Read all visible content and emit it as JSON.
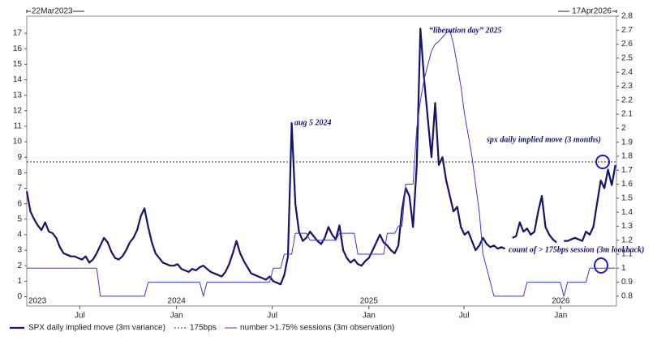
{
  "chart_data": {
    "type": "line",
    "header_start": "22Mar2023",
    "header_end": "17Apr2026",
    "x": [
      "2023-03-22",
      "2023-03-29",
      "2023-04-05",
      "2023-04-12",
      "2023-04-19",
      "2023-04-26",
      "2023-05-03",
      "2023-05-10",
      "2023-05-17",
      "2023-05-24",
      "2023-05-31",
      "2023-06-07",
      "2023-06-14",
      "2023-06-21",
      "2023-06-28",
      "2023-07-05",
      "2023-07-12",
      "2023-07-19",
      "2023-07-26",
      "2023-08-02",
      "2023-08-09",
      "2023-08-16",
      "2023-08-23",
      "2023-08-30",
      "2023-09-06",
      "2023-09-13",
      "2023-09-20",
      "2023-09-27",
      "2023-10-04",
      "2023-10-11",
      "2023-10-18",
      "2023-10-25",
      "2023-11-01",
      "2023-11-08",
      "2023-11-15",
      "2023-11-22",
      "2023-11-29",
      "2023-12-06",
      "2023-12-13",
      "2023-12-20",
      "2023-12-27",
      "2024-01-03",
      "2024-01-10",
      "2024-01-17",
      "2024-01-24",
      "2024-01-31",
      "2024-02-07",
      "2024-02-14",
      "2024-02-21",
      "2024-02-28",
      "2024-03-06",
      "2024-03-13",
      "2024-03-20",
      "2024-03-27",
      "2024-04-03",
      "2024-04-10",
      "2024-04-17",
      "2024-04-24",
      "2024-05-01",
      "2024-05-08",
      "2024-05-15",
      "2024-05-22",
      "2024-05-29",
      "2024-06-05",
      "2024-06-12",
      "2024-06-19",
      "2024-06-26",
      "2024-07-03",
      "2024-07-10",
      "2024-07-17",
      "2024-07-24",
      "2024-07-31",
      "2024-08-07",
      "2024-08-14",
      "2024-08-21",
      "2024-08-28",
      "2024-09-04",
      "2024-09-11",
      "2024-09-18",
      "2024-09-25",
      "2024-10-02",
      "2024-10-09",
      "2024-10-16",
      "2024-10-23",
      "2024-10-30",
      "2024-11-06",
      "2024-11-13",
      "2024-11-20",
      "2024-11-27",
      "2024-12-04",
      "2024-12-11",
      "2024-12-18",
      "2024-12-25",
      "2025-01-01",
      "2025-01-08",
      "2025-01-15",
      "2025-01-22",
      "2025-01-29",
      "2025-02-05",
      "2025-02-12",
      "2025-02-19",
      "2025-02-26",
      "2025-03-05",
      "2025-03-12",
      "2025-03-19",
      "2025-03-26",
      "2025-04-02",
      "2025-04-09",
      "2025-04-16",
      "2025-04-23",
      "2025-04-30",
      "2025-05-07",
      "2025-05-14",
      "2025-05-21",
      "2025-05-28",
      "2025-06-04",
      "2025-06-11",
      "2025-06-18",
      "2025-06-25",
      "2025-07-02",
      "2025-07-09",
      "2025-07-16",
      "2025-07-23",
      "2025-07-30",
      "2025-08-06",
      "2025-08-13",
      "2025-08-20",
      "2025-08-27",
      "2025-09-03",
      "2025-09-10",
      "2025-09-17",
      "2025-09-24",
      "2025-10-01",
      "2025-10-08",
      "2025-10-15",
      "2025-10-22",
      "2025-10-29",
      "2025-11-05",
      "2025-11-12",
      "2025-11-19",
      "2025-11-26",
      "2025-12-03",
      "2025-12-10",
      "2025-12-17",
      "2025-12-24",
      "2025-12-31",
      "2026-01-07",
      "2026-01-14",
      "2026-01-21",
      "2026-01-28",
      "2026-02-04",
      "2026-02-11",
      "2026-02-18",
      "2026-02-25",
      "2026-03-04",
      "2026-03-11",
      "2026-03-18",
      "2026-03-25",
      "2026-04-01",
      "2026-04-08",
      "2026-04-15"
    ],
    "xlim": [
      "2023-03-22",
      "2026-04-17"
    ],
    "xticks": [
      {
        "value": "2023-07-01",
        "label": "Jul"
      },
      {
        "value": "2024-01-01",
        "label": "Jan"
      },
      {
        "value": "2024-07-01",
        "label": "Jul"
      },
      {
        "value": "2025-01-01",
        "label": "Jan"
      },
      {
        "value": "2025-07-01",
        "label": "Jul"
      },
      {
        "value": "2026-01-01",
        "label": "Jan"
      }
    ],
    "year_labels": [
      {
        "value": "2023-03-22",
        "label": "2023"
      },
      {
        "value": "2024-01-01",
        "label": "2024"
      },
      {
        "value": "2025-01-01",
        "label": "2025"
      },
      {
        "value": "2026-01-01",
        "label": "2026"
      }
    ],
    "ylim": [
      -0.6,
      18.1
    ],
    "yticks": [
      0,
      1,
      2,
      3,
      4,
      5,
      6,
      7,
      8,
      9,
      10,
      11,
      12,
      13,
      14,
      15,
      16,
      17
    ],
    "y2lim": [
      0.73,
      2.8
    ],
    "y2ticks": [
      0.8,
      0.9,
      1,
      1.1,
      1.2,
      1.3,
      1.4,
      1.5,
      1.6,
      1.7,
      1.8,
      1.9,
      2,
      2.1,
      2.2,
      2.3,
      2.4,
      2.5,
      2.6,
      2.7,
      2.8
    ],
    "series": [
      {
        "name": "SPX daily implied move (3m variance)",
        "color": "#14146e",
        "axis": "y",
        "values": [
          6.8,
          5.5,
          5.0,
          4.6,
          4.3,
          4.8,
          4.2,
          4.1,
          3.8,
          3.2,
          2.8,
          2.7,
          2.6,
          2.6,
          2.5,
          2.4,
          2.6,
          2.2,
          2.4,
          2.8,
          3.3,
          3.8,
          3.5,
          2.9,
          2.5,
          2.4,
          2.6,
          3.0,
          3.5,
          3.8,
          4.3,
          5.2,
          5.7,
          4.5,
          3.5,
          2.8,
          2.5,
          2.2,
          2.1,
          2.0,
          2.0,
          2.1,
          1.8,
          1.7,
          1.6,
          1.8,
          1.7,
          1.9,
          2.0,
          1.8,
          1.6,
          1.5,
          1.4,
          1.3,
          1.6,
          2.1,
          2.8,
          3.6,
          2.8,
          2.3,
          1.9,
          1.5,
          1.4,
          1.3,
          1.2,
          1.1,
          1.3,
          1.0,
          0.9,
          0.8,
          1.4,
          2.6,
          11.2,
          6.0,
          4.2,
          3.6,
          3.8,
          4.2,
          3.9,
          3.6,
          3.4,
          3.8,
          4.5,
          4.0,
          3.7,
          4.6,
          3.0,
          2.5,
          2.2,
          2.4,
          2.1,
          2.0,
          2.3,
          2.5,
          3.0,
          3.5,
          4.0,
          3.5,
          3.3,
          3.0,
          2.8,
          3.3,
          5.6,
          7.0,
          6.5,
          4.5,
          8.5,
          17.3,
          14.0,
          11.5,
          9.0,
          12.5,
          8.5,
          9.0,
          7.5,
          6.5,
          5.5,
          5.8,
          4.5,
          4.0,
          4.2,
          3.6,
          3.0,
          3.3,
          3.8,
          3.4,
          3.2,
          3.3,
          3.1,
          3.2,
          3.1,
          null,
          3.8,
          3.9,
          4.8,
          4.2,
          4.4,
          4.0,
          4.2,
          5.5,
          6.5,
          4.5,
          4.0,
          3.7,
          3.5,
          null,
          3.6,
          3.6,
          3.7,
          3.8,
          3.7,
          3.6,
          4.2,
          4.0,
          4.5,
          6.0,
          7.5,
          7.0,
          8.2,
          7.2,
          8.5
        ]
      },
      {
        "name": "number >1.75% sessions (3m observation)",
        "color": "#3a3ad0",
        "axis": "y2",
        "values": [
          1.0,
          1.0,
          1.0,
          1.0,
          1.0,
          1.0,
          1.0,
          1.0,
          1.0,
          1.0,
          1.0,
          1.0,
          1.0,
          1.0,
          1.0,
          1.0,
          1.0,
          1.0,
          1.0,
          1.0,
          0.8,
          0.8,
          0.8,
          0.8,
          0.8,
          0.8,
          0.8,
          0.8,
          0.8,
          0.8,
          0.8,
          0.8,
          0.8,
          0.9,
          0.9,
          0.9,
          0.9,
          0.9,
          0.9,
          0.9,
          0.9,
          0.9,
          0.9,
          0.9,
          0.9,
          0.9,
          0.9,
          0.9,
          0.8,
          0.9,
          0.9,
          0.9,
          0.9,
          0.9,
          0.9,
          0.9,
          0.9,
          0.9,
          0.9,
          0.9,
          0.9,
          0.9,
          0.9,
          0.9,
          0.9,
          0.9,
          0.9,
          1.0,
          1.0,
          1.0,
          1.1,
          1.1,
          1.1,
          1.25,
          1.25,
          1.25,
          1.25,
          1.2,
          1.2,
          1.2,
          1.2,
          1.2,
          1.2,
          1.2,
          1.2,
          1.25,
          1.25,
          1.25,
          1.25,
          1.25,
          1.1,
          1.1,
          1.1,
          1.1,
          1.1,
          1.1,
          1.1,
          1.1,
          1.25,
          1.25,
          1.25,
          1.3,
          1.3,
          1.6,
          1.6,
          1.6,
          2.0,
          2.2,
          2.35,
          2.45,
          2.55,
          2.6,
          2.62,
          2.65,
          2.68,
          2.7,
          2.6,
          2.45,
          2.3,
          2.1,
          1.95,
          1.8,
          1.6,
          1.4,
          1.1,
          1.0,
          0.9,
          0.8,
          0.8,
          0.8,
          0.8,
          0.8,
          0.8,
          0.8,
          0.8,
          0.8,
          0.9,
          0.9,
          0.9,
          0.9,
          0.9,
          0.9,
          0.9,
          0.9,
          0.9,
          0.9,
          0.8,
          0.9,
          0.9,
          0.9,
          0.9,
          0.9,
          0.9,
          1.0,
          1.0,
          1.0,
          1.0,
          1.0,
          1.0,
          1.0,
          1.0
        ]
      }
    ],
    "hlines": [
      {
        "name": "175bps",
        "value": 8.7,
        "color": "#333333"
      }
    ],
    "annotations": [
      "aug 5 2024",
      "“liberation day” 2025",
      "spx daily implied move (3 months)",
      "count of > 175bps session (3m lookback)"
    ]
  }
}
